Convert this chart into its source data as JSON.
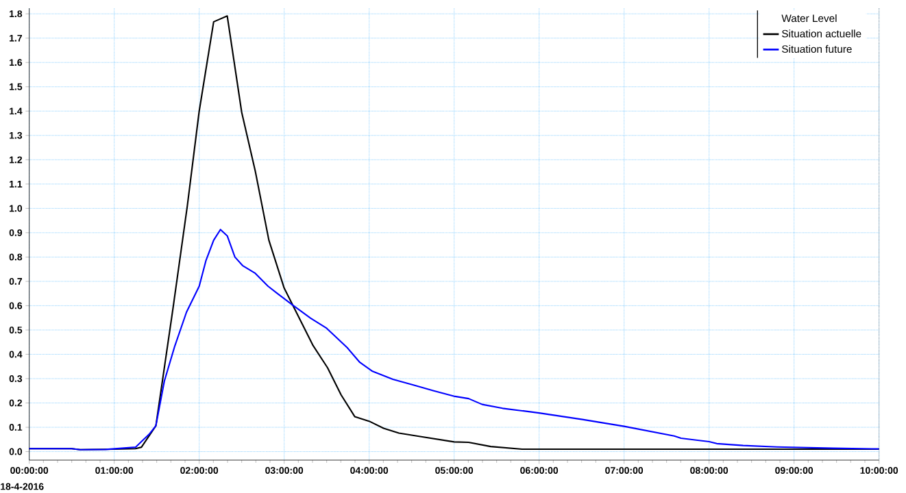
{
  "chart_data": {
    "type": "line",
    "legend_title": "Water Level",
    "annotations": [
      "18-4-2016"
    ],
    "series": [
      {
        "name": "Situation actuelle",
        "color": "#000000",
        "x": [
          0,
          0.5,
          0.6,
          1.0,
          1.25,
          1.32,
          1.49,
          1.69,
          1.86,
          2.0,
          2.17,
          2.33,
          2.5,
          2.66,
          2.82,
          3.0,
          3.34,
          3.51,
          3.67,
          3.83,
          4.0,
          4.17,
          4.35,
          4.6,
          5.0,
          5.17,
          5.43,
          5.8,
          10
        ],
        "values": [
          0.012,
          0.012,
          0.008,
          0.01,
          0.012,
          0.018,
          0.106,
          0.585,
          1.01,
          1.4,
          1.767,
          1.791,
          1.395,
          1.153,
          0.869,
          0.672,
          0.436,
          0.345,
          0.233,
          0.144,
          0.125,
          0.096,
          0.076,
          0.062,
          0.04,
          0.038,
          0.021,
          0.01,
          0.01
        ]
      },
      {
        "name": "Situation future",
        "color": "#0000ff",
        "x": [
          0,
          0.5,
          0.6,
          0.9,
          1.25,
          1.41,
          1.49,
          1.59,
          1.71,
          1.85,
          2.0,
          2.08,
          2.17,
          2.25,
          2.33,
          2.42,
          2.51,
          2.66,
          2.81,
          2.92,
          3.09,
          3.31,
          3.5,
          3.74,
          3.89,
          4.04,
          4.28,
          4.52,
          4.76,
          5.01,
          5.17,
          5.33,
          5.57,
          6.0,
          6.51,
          7.0,
          7.59,
          7.67,
          8.0,
          8.09,
          8.4,
          8.8,
          9.46,
          10
        ],
        "values": [
          0.012,
          0.012,
          0.008,
          0.009,
          0.018,
          0.071,
          0.106,
          0.29,
          0.431,
          0.573,
          0.68,
          0.786,
          0.869,
          0.913,
          0.887,
          0.8,
          0.765,
          0.733,
          0.68,
          0.65,
          0.605,
          0.549,
          0.507,
          0.428,
          0.367,
          0.33,
          0.297,
          0.274,
          0.25,
          0.227,
          0.218,
          0.194,
          0.178,
          0.159,
          0.132,
          0.104,
          0.064,
          0.055,
          0.041,
          0.033,
          0.025,
          0.019,
          0.014,
          0.011
        ]
      }
    ],
    "xlim": [
      0,
      10
    ],
    "xticks": [
      {
        "value": 0,
        "label": "00:00:00"
      },
      {
        "value": 1,
        "label": "01:00:00"
      },
      {
        "value": 2,
        "label": "02:00:00"
      },
      {
        "value": 3,
        "label": "03:00:00"
      },
      {
        "value": 4,
        "label": "04:00:00"
      },
      {
        "value": 5,
        "label": "05:00:00"
      },
      {
        "value": 6,
        "label": "06:00:00"
      },
      {
        "value": 7,
        "label": "07:00:00"
      },
      {
        "value": 8,
        "label": "08:00:00"
      },
      {
        "value": 9,
        "label": "09:00:00"
      },
      {
        "value": 10,
        "label": "10:00:00"
      }
    ],
    "ylim": [
      -0.035,
      1.823
    ],
    "yticks": [
      {
        "value": 0,
        "label": "0.0"
      },
      0.1,
      0.2,
      0.3,
      0.4,
      0.5,
      0.6,
      0.7,
      0.8,
      0.9,
      {
        "value": 1,
        "label": "1.0"
      },
      1.1,
      1.2,
      1.3,
      1.4,
      1.5,
      1.6,
      1.7,
      1.8
    ],
    "grid": true,
    "legend": "top right",
    "marker": "none",
    "line_style": "solid"
  }
}
